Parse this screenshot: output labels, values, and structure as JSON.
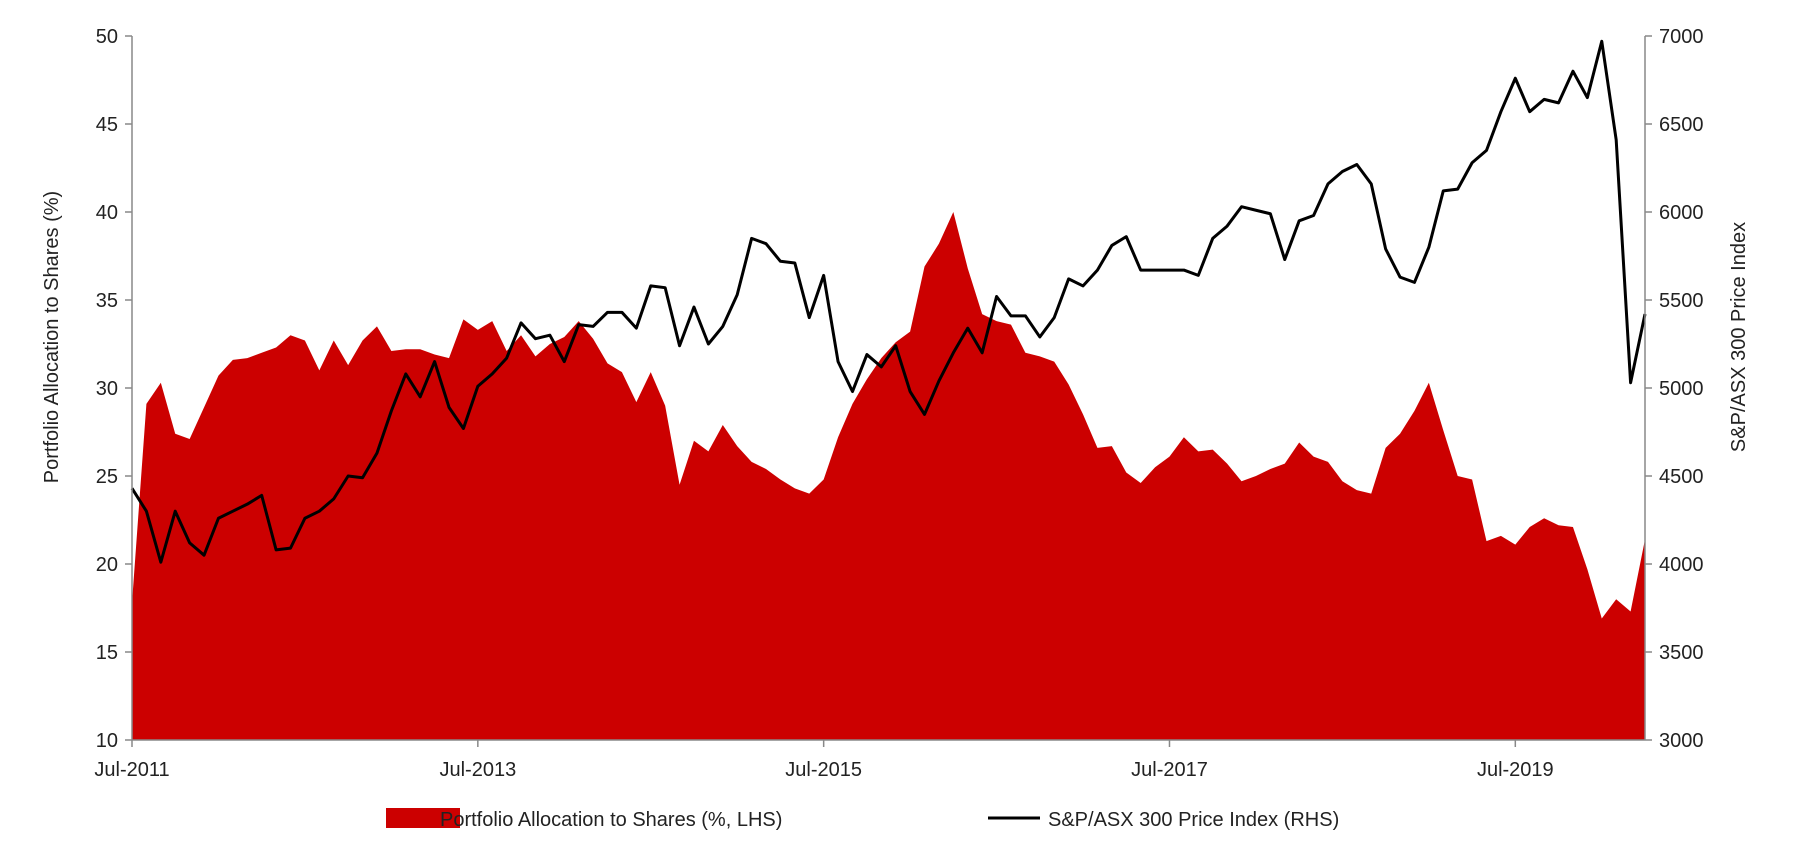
{
  "chart_data": {
    "type": "area",
    "title": "",
    "ylabel": "Portfolio Allocation to Shares (%)",
    "y2label": "S&P/ASX 300 Price Index",
    "ylim": [
      10,
      50
    ],
    "y2lim": [
      3000,
      7000
    ],
    "yticks": [
      "10",
      "15",
      "20",
      "25",
      "30",
      "35",
      "40",
      "45",
      "50"
    ],
    "y2ticks": [
      "3000",
      "3500",
      "4000",
      "4500",
      "5000",
      "5500",
      "6000",
      "6500",
      "7000"
    ],
    "xticks": [
      {
        "label": "Jul-2011",
        "index": 0
      },
      {
        "label": "Jul-2013",
        "index": 24
      },
      {
        "label": "Jul-2015",
        "index": 48
      },
      {
        "label": "Jul-2017",
        "index": 72
      },
      {
        "label": "Jul-2019",
        "index": 96
      }
    ],
    "x_start": "Jul-2011",
    "x_end": "Mar-2020",
    "grid": false,
    "legend_position": "bottom",
    "series": [
      {
        "name": "Portfolio Allocation to Shares (%, LHS)",
        "type": "area",
        "axis": "left",
        "color": "#cc0000",
        "values": [
          17.8,
          29.1,
          30.3,
          27.4,
          27.1,
          28.9,
          30.7,
          31.6,
          31.7,
          32.0,
          32.3,
          33.0,
          32.7,
          31.0,
          32.7,
          31.3,
          32.7,
          33.5,
          32.1,
          32.2,
          32.2,
          31.9,
          31.7,
          33.9,
          33.3,
          33.8,
          32.1,
          33.0,
          31.8,
          32.5,
          32.9,
          33.8,
          32.8,
          31.4,
          30.9,
          29.2,
          30.9,
          29.0,
          24.5,
          27.0,
          26.4,
          27.9,
          26.7,
          25.8,
          25.4,
          24.8,
          24.3,
          24.0,
          24.8,
          27.2,
          29.1,
          30.5,
          31.7,
          32.6,
          33.2,
          36.9,
          38.2,
          40.0,
          36.8,
          34.2,
          33.8,
          33.6,
          32.0,
          31.8,
          31.5,
          30.2,
          28.5,
          26.6,
          26.7,
          25.2,
          24.6,
          25.5,
          26.1,
          27.2,
          26.4,
          26.5,
          25.7,
          24.7,
          25.0,
          25.4,
          25.7,
          26.9,
          26.1,
          25.8,
          24.7,
          24.2,
          24.0,
          26.6,
          27.4,
          28.7,
          30.3,
          27.6,
          25.0,
          24.8,
          21.3,
          21.6,
          21.1,
          22.1,
          22.6,
          22.2,
          22.1,
          19.7,
          16.9,
          18.0,
          17.3,
          21.4
        ]
      },
      {
        "name": "S&P/ASX 300 Price Index (RHS)",
        "type": "line",
        "axis": "right",
        "color": "#000000",
        "values": [
          4430,
          4300,
          4010,
          4300,
          4120,
          4050,
          4260,
          4300,
          4340,
          4390,
          4080,
          4090,
          4260,
          4300,
          4370,
          4500,
          4490,
          4630,
          4870,
          5080,
          4950,
          5150,
          4890,
          4770,
          5010,
          5080,
          5170,
          5370,
          5280,
          5300,
          5150,
          5360,
          5350,
          5430,
          5430,
          5340,
          5580,
          5570,
          5240,
          5460,
          5250,
          5350,
          5530,
          5850,
          5820,
          5720,
          5710,
          5400,
          5640,
          5150,
          4980,
          5190,
          5120,
          5240,
          4980,
          4850,
          5040,
          5200,
          5340,
          5200,
          5520,
          5410,
          5410,
          5290,
          5400,
          5620,
          5580,
          5670,
          5810,
          5860,
          5670,
          5670,
          5670,
          5670,
          5640,
          5850,
          5920,
          6030,
          6010,
          5990,
          5730,
          5950,
          5980,
          6160,
          6230,
          6270,
          6160,
          5790,
          5630,
          5600,
          5800,
          6120,
          6130,
          6280,
          6350,
          6570,
          6760,
          6570,
          6640,
          6620,
          6800,
          6650,
          6970,
          6410,
          5030,
          5420
        ]
      }
    ]
  }
}
